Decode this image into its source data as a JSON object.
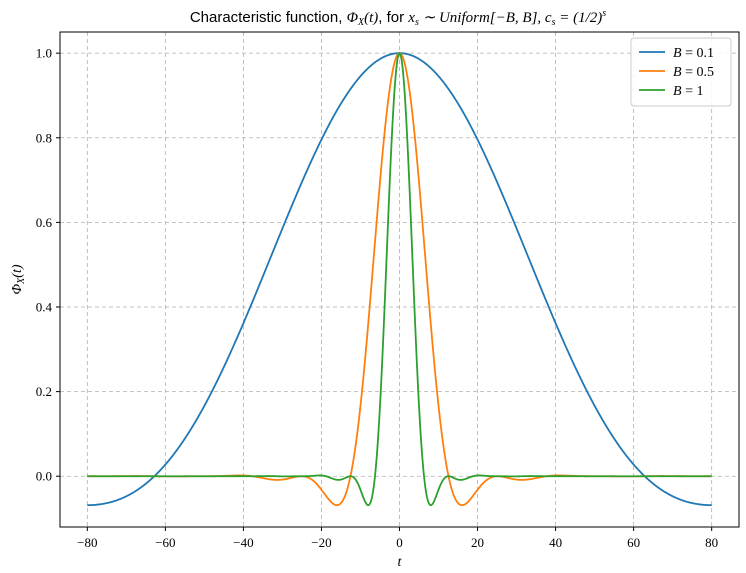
{
  "chart_data": {
    "type": "line",
    "title": "Characteristic function, Φ_X(t), for x_s ~ Uniform[−B, B], c_s = (1/2)^s",
    "title_parts": {
      "prefix": "Characteristic function, ",
      "phi": "Φ",
      "phi_sub": "X",
      "phi_arg": "(t)",
      "for": ", for ",
      "dist_var": "x",
      "dist_sub": "s",
      "dist_rel": " ∼ ",
      "dist_name": "Uniform",
      "dist_range": "[−B, B]",
      "sep": ", ",
      "coef_var": "c",
      "coef_sub": "s",
      "coef_eq": " = (1/2)",
      "coef_pow": "s"
    },
    "xlabel": "t",
    "ylabel": "Φ_X(t)",
    "ylabel_parts": {
      "phi": "Φ",
      "sub": "X",
      "arg": "(t)"
    },
    "xlim": [
      -87,
      87
    ],
    "ylim": [
      -0.12,
      1.05
    ],
    "xticks": [
      -80,
      -60,
      -40,
      -20,
      0,
      20,
      40,
      60,
      80
    ],
    "xtick_labels": [
      "−80",
      "−60",
      "−40",
      "−20",
      "0",
      "20",
      "40",
      "60",
      "80"
    ],
    "yticks": [
      0.0,
      0.2,
      0.4,
      0.6,
      0.8,
      1.0
    ],
    "ytick_labels": [
      "0.0",
      "0.2",
      "0.4",
      "0.6",
      "0.8",
      "1.0"
    ],
    "x_range": [
      -80,
      80
    ],
    "grid": true,
    "legend_position": "top-right",
    "series": [
      {
        "name": "B = 0.1",
        "legend_var": "B",
        "legend_val": " = 0.1",
        "B": 0.1,
        "color": "#1f77b4"
      },
      {
        "name": "B = 0.5",
        "legend_var": "B",
        "legend_val": " = 0.5",
        "B": 0.5,
        "color": "#ff7f0e"
      },
      {
        "name": "B = 1",
        "legend_var": "B",
        "legend_val": " = 1",
        "B": 1,
        "color": "#2ca02c"
      }
    ]
  }
}
